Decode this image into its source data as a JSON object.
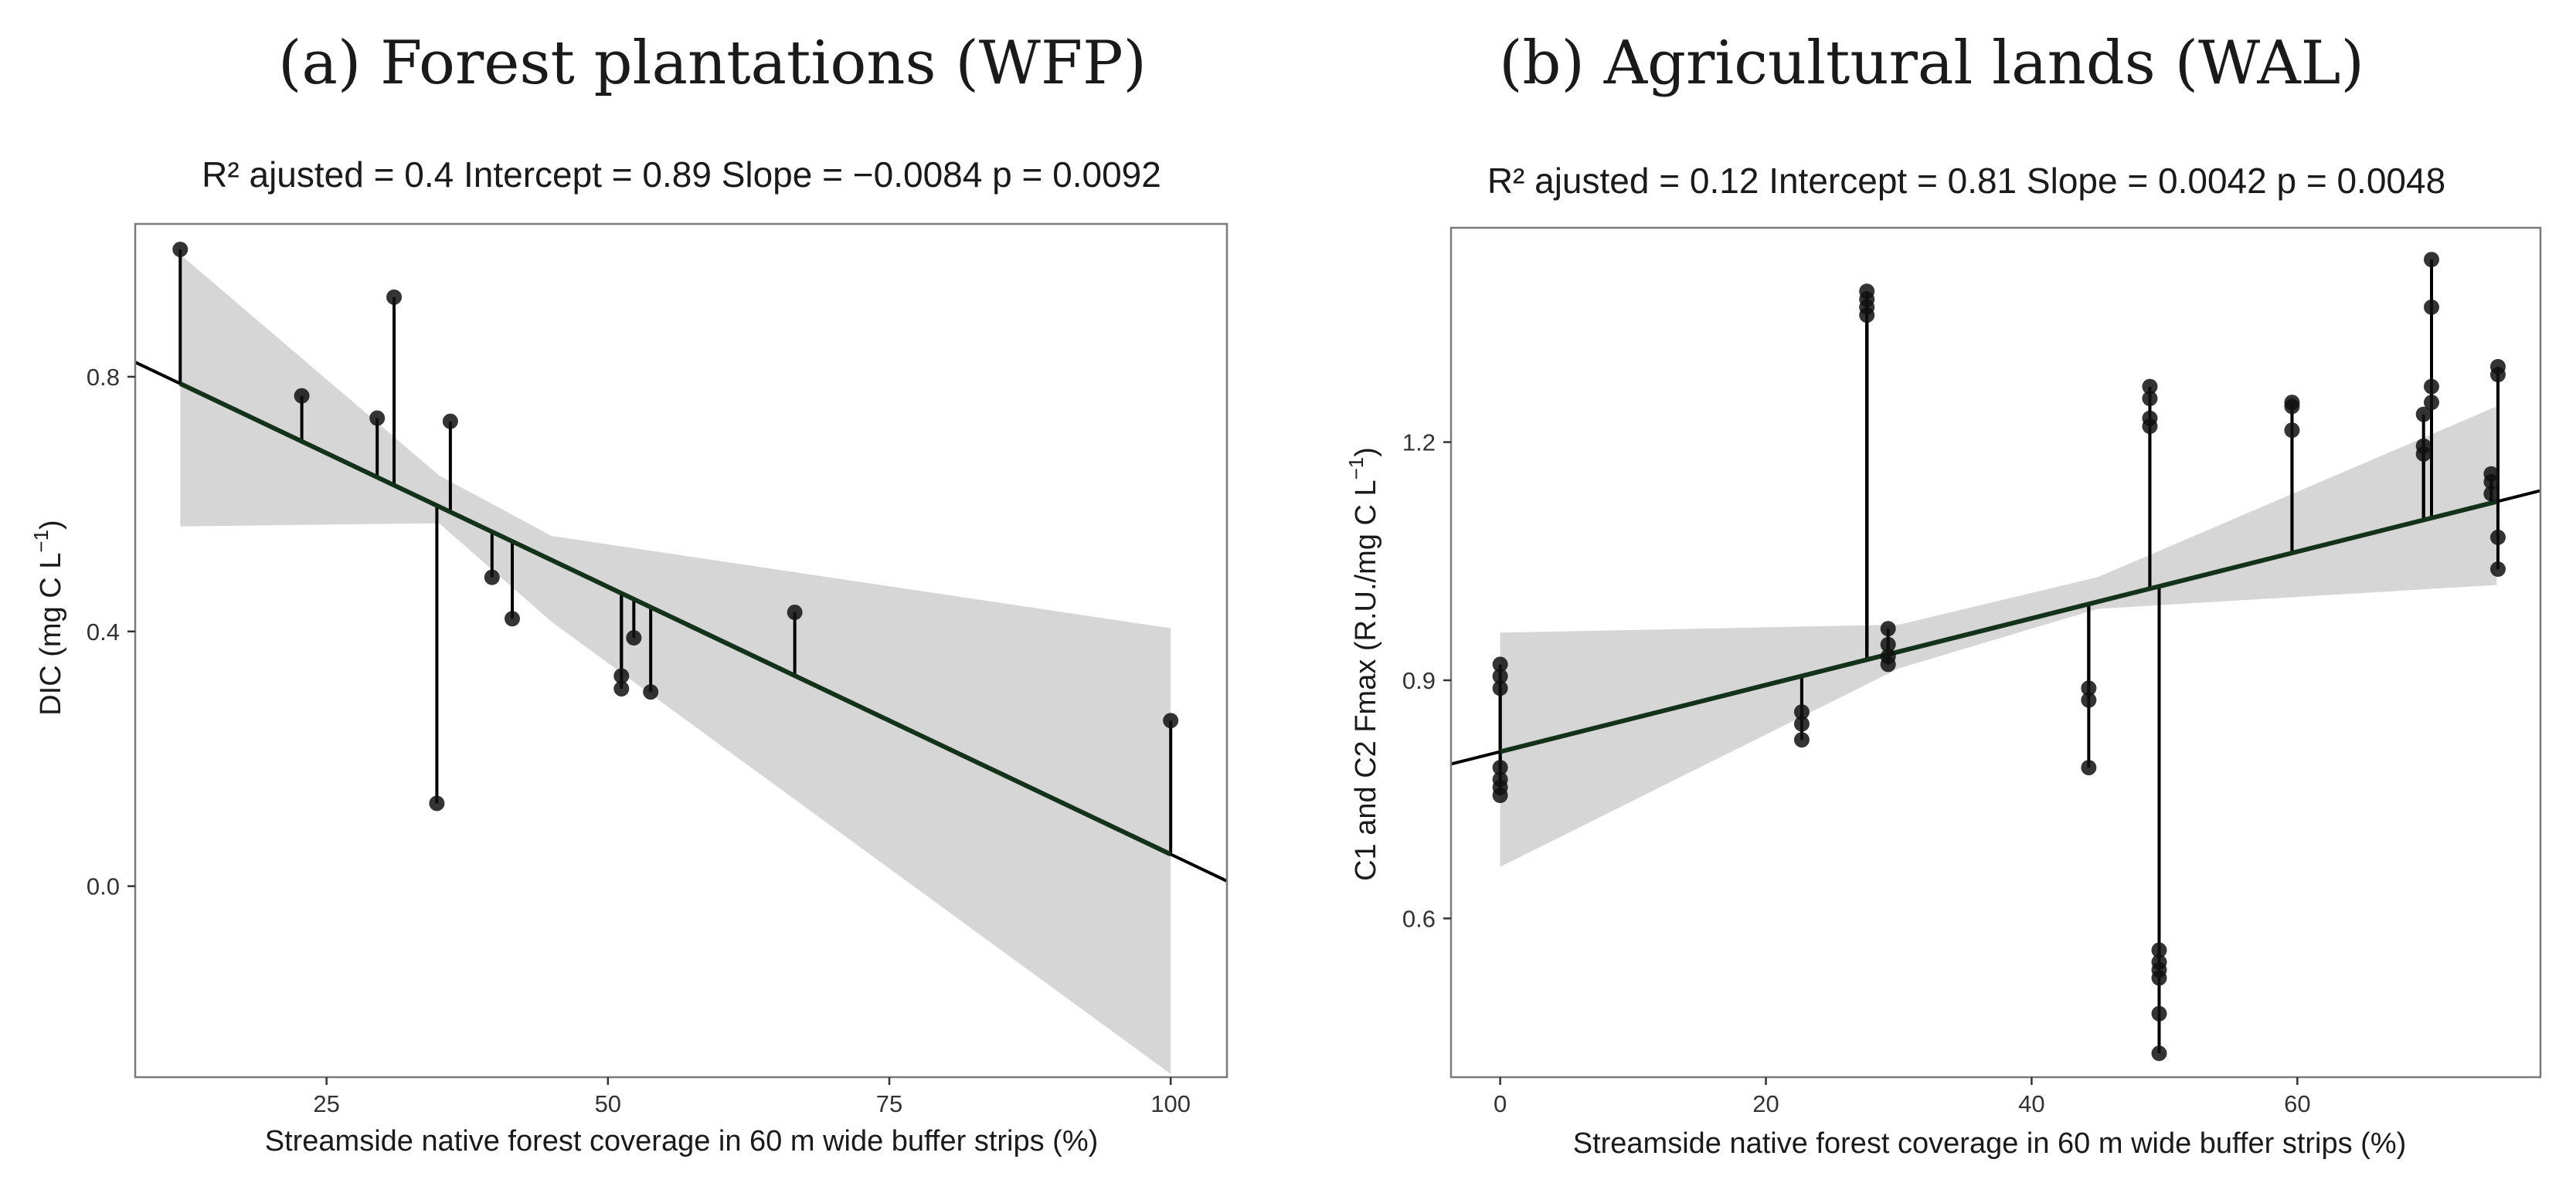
{
  "chart_data": [
    {
      "type": "scatter",
      "panel_title": "(a) Forest plantations (WFP)",
      "title": "R² ajusted =  0.4 Intercept = 0.89  Slope = −0.0084  p = 0.0092",
      "xlabel": "Streamside native forest coverage in 60 m wide buffer strips (%)",
      "ylabel_main": "DIC (mg C L",
      "ylabel_sup": "−1",
      "ylabel_close": ")",
      "xlim": [
        8,
        105
      ],
      "ylim": [
        -0.3,
        1.04
      ],
      "xticks": [
        25,
        50,
        75,
        100
      ],
      "xtick_labels": [
        "25",
        "50",
        "75",
        "100"
      ],
      "yticks": [
        0.0,
        0.4,
        0.8
      ],
      "ytick_labels": [
        "0.0",
        "0.4",
        "0.8"
      ],
      "regression": {
        "intercept": 0.89,
        "slope": -0.0084
      },
      "ci_band": [
        [
          12,
          0.565,
          0.992
        ],
        [
          35,
          0.57,
          0.645
        ],
        [
          45,
          0.415,
          0.55
        ],
        [
          100,
          -0.295,
          0.405
        ]
      ],
      "points": [
        {
          "x": 12,
          "y": 1.0
        },
        {
          "x": 22.8,
          "y": 0.77
        },
        {
          "x": 29.5,
          "y": 0.735
        },
        {
          "x": 31,
          "y": 0.925
        },
        {
          "x": 34.8,
          "y": 0.13
        },
        {
          "x": 36,
          "y": 0.73
        },
        {
          "x": 39.7,
          "y": 0.485
        },
        {
          "x": 41.5,
          "y": 0.42
        },
        {
          "x": 51.2,
          "y": 0.33
        },
        {
          "x": 51.2,
          "y": 0.31
        },
        {
          "x": 52.3,
          "y": 0.39
        },
        {
          "x": 53.8,
          "y": 0.305
        },
        {
          "x": 66.6,
          "y": 0.43
        },
        {
          "x": 100,
          "y": 0.26
        }
      ]
    },
    {
      "type": "scatter",
      "panel_title": "(b) Agricultural lands (WAL)",
      "title": "R² ajusted =  0.12 Intercept = 0.81  Slope = 0.0042  p = 0.0048",
      "xlabel": "Streamside native forest coverage in 60 m wide buffer strips (%)",
      "ylabel_main": "C1 and C2  Fmax (R.U./mg C L",
      "ylabel_sup": "−1",
      "ylabel_close": ")",
      "xlim": [
        -3.7,
        78.3
      ],
      "ylim": [
        0.4,
        1.47
      ],
      "xticks": [
        0,
        20,
        40,
        60
      ],
      "xtick_labels": [
        "0",
        "20",
        "40",
        "60"
      ],
      "yticks": [
        0.6,
        0.9,
        1.2
      ],
      "ytick_labels": [
        "0.6",
        "0.9",
        "1.2"
      ],
      "regression": {
        "intercept": 0.81,
        "slope": 0.0042
      },
      "ci_band": [
        [
          0,
          0.665,
          0.96
        ],
        [
          30,
          0.915,
          0.97
        ],
        [
          45,
          0.99,
          1.03
        ],
        [
          75,
          1.02,
          1.245
        ]
      ],
      "points": [
        {
          "x": 0,
          "y": 0.92
        },
        {
          "x": 0,
          "y": 0.905
        },
        {
          "x": 0,
          "y": 0.89
        },
        {
          "x": 0,
          "y": 0.79
        },
        {
          "x": 0,
          "y": 0.775
        },
        {
          "x": 0,
          "y": 0.765
        },
        {
          "x": 0,
          "y": 0.755
        },
        {
          "x": 22.7,
          "y": 0.86
        },
        {
          "x": 22.7,
          "y": 0.845
        },
        {
          "x": 22.7,
          "y": 0.825
        },
        {
          "x": 27.6,
          "y": 1.39
        },
        {
          "x": 27.6,
          "y": 1.38
        },
        {
          "x": 27.6,
          "y": 1.37
        },
        {
          "x": 27.6,
          "y": 1.36
        },
        {
          "x": 29.2,
          "y": 0.965
        },
        {
          "x": 29.2,
          "y": 0.945
        },
        {
          "x": 29.2,
          "y": 0.93
        },
        {
          "x": 29.2,
          "y": 0.92
        },
        {
          "x": 44.3,
          "y": 0.89
        },
        {
          "x": 44.3,
          "y": 0.875
        },
        {
          "x": 44.3,
          "y": 0.79
        },
        {
          "x": 48.9,
          "y": 1.27
        },
        {
          "x": 48.9,
          "y": 1.255
        },
        {
          "x": 48.9,
          "y": 1.23
        },
        {
          "x": 48.9,
          "y": 1.22
        },
        {
          "x": 49.6,
          "y": 0.56
        },
        {
          "x": 49.6,
          "y": 0.545
        },
        {
          "x": 49.6,
          "y": 0.535
        },
        {
          "x": 49.6,
          "y": 0.525
        },
        {
          "x": 49.6,
          "y": 0.48
        },
        {
          "x": 49.6,
          "y": 0.43
        },
        {
          "x": 59.6,
          "y": 1.25
        },
        {
          "x": 59.6,
          "y": 1.245
        },
        {
          "x": 59.6,
          "y": 1.215
        },
        {
          "x": 69.5,
          "y": 1.235
        },
        {
          "x": 69.5,
          "y": 1.195
        },
        {
          "x": 69.5,
          "y": 1.185
        },
        {
          "x": 70.1,
          "y": 1.43
        },
        {
          "x": 70.1,
          "y": 1.37
        },
        {
          "x": 70.1,
          "y": 1.27
        },
        {
          "x": 70.1,
          "y": 1.25
        },
        {
          "x": 74.6,
          "y": 1.16
        },
        {
          "x": 74.6,
          "y": 1.15
        },
        {
          "x": 74.6,
          "y": 1.135
        },
        {
          "x": 75.1,
          "y": 1.295
        },
        {
          "x": 75.1,
          "y": 1.285
        },
        {
          "x": 75.1,
          "y": 1.08
        },
        {
          "x": 75.1,
          "y": 1.04
        }
      ]
    }
  ]
}
